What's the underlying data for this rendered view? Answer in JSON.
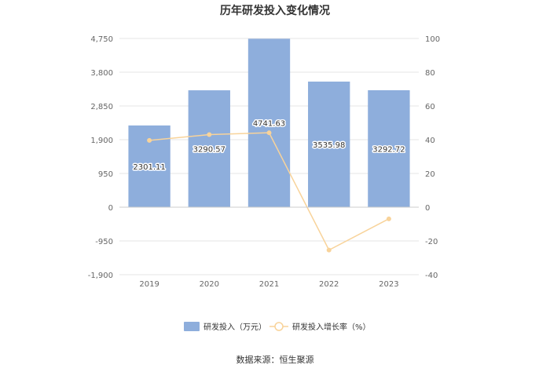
{
  "chart_data": {
    "type": "bar",
    "title": "历年研发投入变化情况",
    "categories": [
      "2019",
      "2020",
      "2021",
      "2022",
      "2023"
    ],
    "series": [
      {
        "name": "研发投入（万元）",
        "type": "bar",
        "axis": "left",
        "values": [
          2301.11,
          3290.57,
          4741.63,
          3535.98,
          3292.72
        ],
        "labels": [
          "2301.11",
          "3290.57",
          "4741.63",
          "3535.98",
          "3292.72"
        ],
        "color": "#8eaedc"
      },
      {
        "name": "研发投入增长率（%）",
        "type": "line",
        "axis": "right",
        "values": [
          39.6,
          43.0,
          44.1,
          -25.4,
          -6.9
        ],
        "color": "#f8d39a"
      }
    ],
    "y_left": {
      "min": -1900,
      "max": 4750,
      "ticks": [
        4750,
        3800,
        2850,
        1900,
        950,
        0,
        -950,
        -1900
      ],
      "tick_labels": [
        "4,750",
        "3,800",
        "2,850",
        "1,900",
        "950",
        "0",
        "-950",
        "-1,900"
      ]
    },
    "y_right": {
      "min": -40,
      "max": 100,
      "ticks": [
        100,
        80,
        60,
        40,
        20,
        0,
        -20,
        -40
      ],
      "tick_labels": [
        "100",
        "80",
        "60",
        "40",
        "20",
        "0",
        "-20",
        "-40"
      ]
    },
    "grid": true,
    "legend_position": "bottom"
  },
  "footer": {
    "source": "数据来源：恒生聚源"
  }
}
